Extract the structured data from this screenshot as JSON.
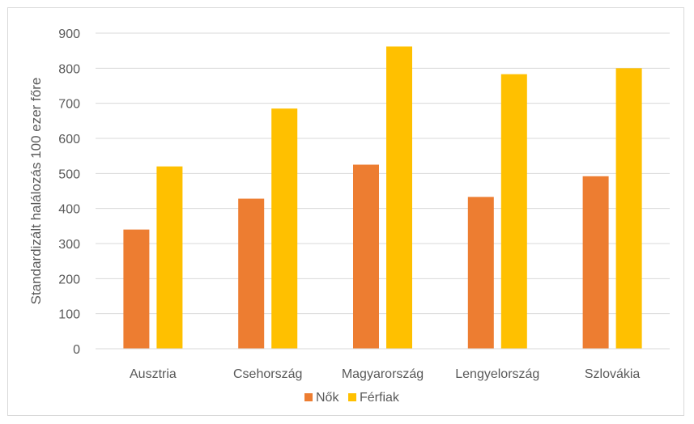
{
  "chart_data": {
    "type": "bar",
    "title": "",
    "xlabel": "",
    "ylabel": "Standardizált halálozás 100 ezer főre",
    "ylim": [
      0,
      900
    ],
    "yticks": [
      0,
      100,
      200,
      300,
      400,
      500,
      600,
      700,
      800,
      900
    ],
    "grid": true,
    "legend_position": "bottom",
    "categories": [
      "Ausztria",
      "Csehország",
      "Magyarország",
      "Lengyelország",
      "Szlovákia"
    ],
    "series": [
      {
        "name": "Nők",
        "color": "#ed7d31",
        "values": [
          340,
          428,
          525,
          433,
          492
        ]
      },
      {
        "name": "Férfiak",
        "color": "#ffc000",
        "values": [
          520,
          685,
          862,
          783,
          800
        ]
      }
    ]
  }
}
